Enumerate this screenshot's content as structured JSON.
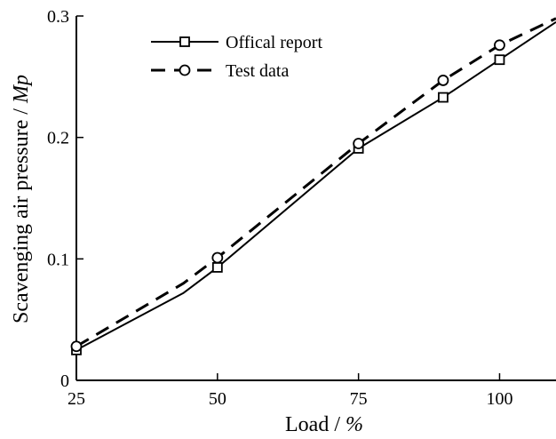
{
  "chart_data": {
    "type": "line",
    "xlabel": "Load / %",
    "ylabel": "Scavenging air pressure / Mp",
    "x": [
      25,
      50,
      75,
      90,
      100
    ],
    "xlim": [
      25,
      110
    ],
    "ylim": [
      0,
      0.3
    ],
    "x_ticks": [
      "25",
      "50",
      "75",
      "100"
    ],
    "y_ticks": [
      "0",
      "0.1",
      "0.2",
      "0.3"
    ],
    "legend_position": "top-left",
    "grid": false,
    "series": [
      {
        "name": "Offical report",
        "style": "solid",
        "marker": "square",
        "values": [
          0.025,
          0.093,
          0.191,
          0.233,
          0.264
        ],
        "line": [
          [
            25,
            0.025
          ],
          [
            44,
            0.072
          ],
          [
            50,
            0.093
          ],
          [
            75,
            0.191
          ],
          [
            90,
            0.233
          ],
          [
            100,
            0.264
          ],
          [
            110,
            0.295
          ]
        ]
      },
      {
        "name": "Test data",
        "style": "dashed",
        "marker": "circle",
        "values": [
          0.028,
          0.101,
          0.195,
          0.247,
          0.276
        ],
        "line": [
          [
            25,
            0.028
          ],
          [
            44,
            0.08
          ],
          [
            50,
            0.101
          ],
          [
            75,
            0.195
          ],
          [
            90,
            0.247
          ],
          [
            100,
            0.276
          ],
          [
            110,
            0.298
          ]
        ]
      }
    ]
  }
}
